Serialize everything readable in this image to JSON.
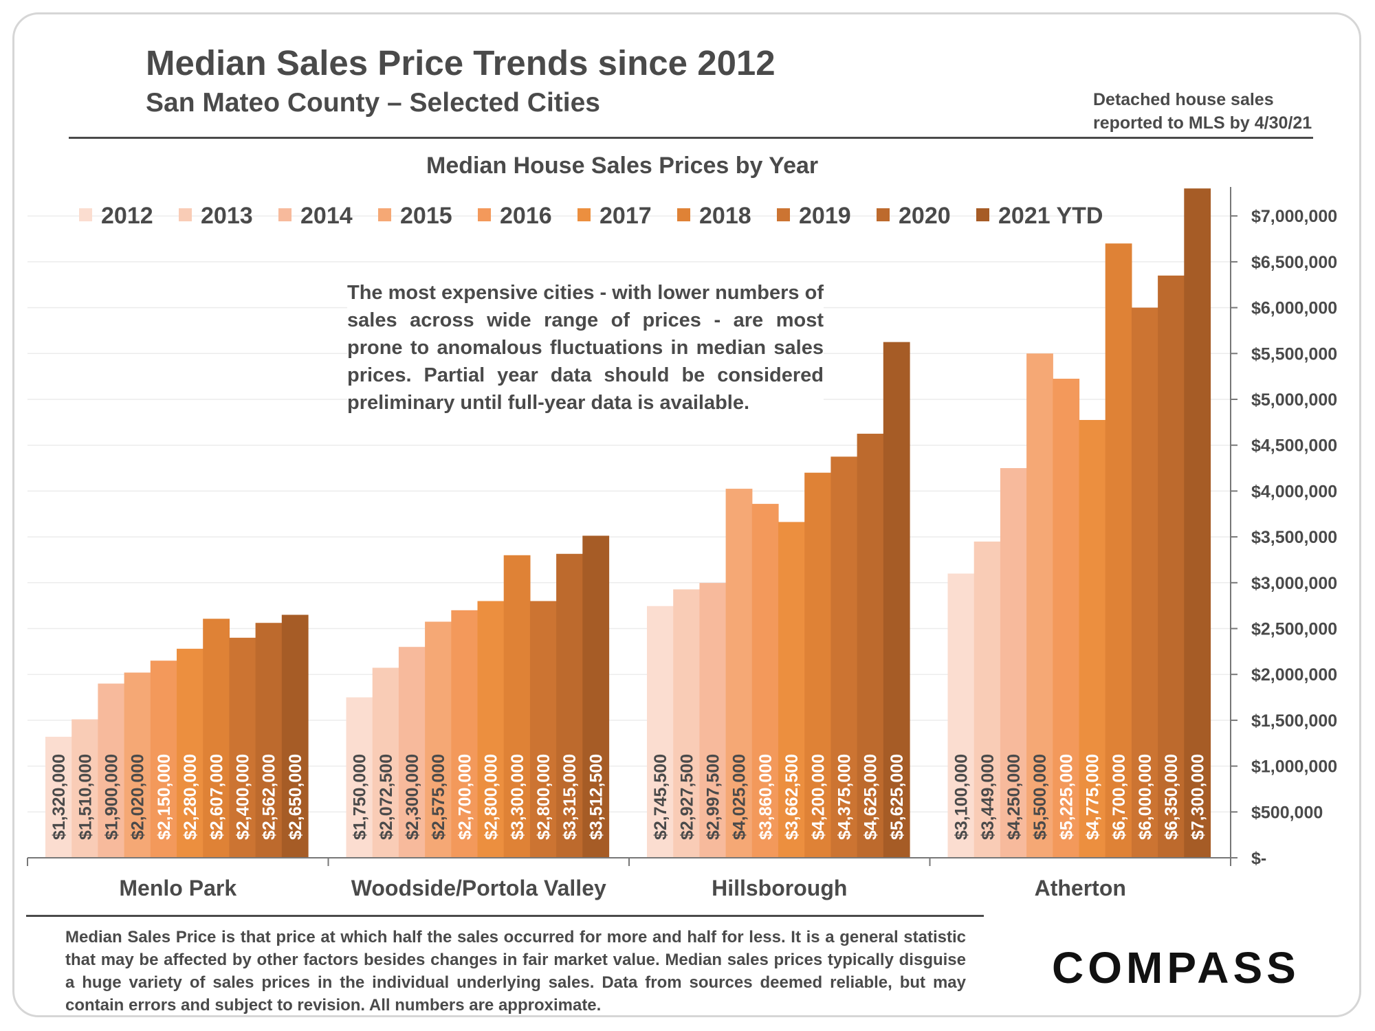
{
  "header": {
    "title": "Median Sales Price Trends since 2012",
    "subtitle": "San Mateo County – Selected Cities",
    "note_line1": "Detached house sales",
    "note_line2": "reported to MLS by 4/30/21"
  },
  "annotation": "The most expensive cities - with lower numbers of sales across wide range of prices - are most prone to anomalous fluctuations in median sales prices.  Partial year data should be considered preliminary until full-year data is available.",
  "footnote": "Median Sales Price is that price at which half the sales occurred for more and half for less. It is a general statistic that may be affected by other factors besides changes in fair market value. Median sales prices typically disguise a huge variety of sales prices in the individual underlying sales. Data from sources deemed reliable, but may contain errors and subject to revision.  All numbers are approximate.",
  "logo": {
    "text": "COMPASS"
  },
  "colors": {
    "text": "#4a4a4a",
    "series": [
      "#fbddd0",
      "#f9ccb6",
      "#f7ba9c",
      "#f5a875",
      "#f3995b",
      "#ec8f3f",
      "#df8236",
      "#cc7432",
      "#bd6a2d",
      "#a65c26"
    ]
  },
  "chart_data": {
    "type": "bar",
    "title": "Median House Sales Prices by Year",
    "categories": [
      "Menlo Park",
      "Woodside/Portola Valley",
      "Hillsborough",
      "Atherton"
    ],
    "series": [
      {
        "name": "2012",
        "values": [
          1320000,
          1750000,
          2745500,
          3100000
        ],
        "labels": [
          "$1,320,000",
          "$1,750,000",
          "$2,745,500",
          "$3,100,000"
        ]
      },
      {
        "name": "2013",
        "values": [
          1510000,
          2072500,
          2927500,
          3449000
        ],
        "labels": [
          "$1,510,000",
          "$2,072,500",
          "$2,927,500",
          "$3,449,000"
        ]
      },
      {
        "name": "2014",
        "values": [
          1900000,
          2300000,
          2997500,
          4250000
        ],
        "labels": [
          "$1,900,000",
          "$2,300,000",
          "$2,997,500",
          "$4,250,000"
        ]
      },
      {
        "name": "2015",
        "values": [
          2020000,
          2575000,
          4025000,
          5500000
        ],
        "labels": [
          "$2,020,000",
          "$2,575,000",
          "$4,025,000",
          "$5,500,000"
        ]
      },
      {
        "name": "2016",
        "values": [
          2150000,
          2700000,
          3860000,
          5225000
        ],
        "labels": [
          "$2,150,000",
          "$2,700,000",
          "$3,860,000",
          "$5,225,000"
        ]
      },
      {
        "name": "2017",
        "values": [
          2280000,
          2800000,
          3662500,
          4775000
        ],
        "labels": [
          "$2,280,000",
          "$2,800,000",
          "$3,662,500",
          "$4,775,000"
        ]
      },
      {
        "name": "2018",
        "values": [
          2607000,
          3300000,
          4200000,
          6700000
        ],
        "labels": [
          "$2,607,000",
          "$3,300,000",
          "$4,200,000",
          "$6,700,000"
        ]
      },
      {
        "name": "2019",
        "values": [
          2400000,
          2800000,
          4375000,
          6000000
        ],
        "labels": [
          "$2,400,000",
          "$2,800,000",
          "$4,375,000",
          "$6,000,000"
        ]
      },
      {
        "name": "2020",
        "values": [
          2562000,
          3315000,
          4625000,
          6350000
        ],
        "labels": [
          "$2,562,000",
          "$3,315,000",
          "$4,625,000",
          "$6,350,000"
        ]
      },
      {
        "name": "2021 YTD",
        "values": [
          2650000,
          3512500,
          5625000,
          7300000
        ],
        "labels": [
          "$2,650,000",
          "$3,512,500",
          "$5,625,000",
          "$7,300,000"
        ]
      }
    ],
    "y_axis": {
      "min": 0,
      "max": 7300000,
      "ticks": [
        0,
        500000,
        1000000,
        1500000,
        2000000,
        2500000,
        3000000,
        3500000,
        4000000,
        4500000,
        5000000,
        5500000,
        6000000,
        6500000,
        7000000
      ],
      "tick_labels": [
        "$-",
        "$500,000",
        "$1,000,000",
        "$1,500,000",
        "$2,000,000",
        "$2,500,000",
        "$3,000,000",
        "$3,500,000",
        "$4,000,000",
        "$4,500,000",
        "$5,000,000",
        "$5,500,000",
        "$6,000,000",
        "$6,500,000",
        "$7,000,000"
      ],
      "side": "right"
    },
    "legend_position": "top-left",
    "grid": true
  }
}
